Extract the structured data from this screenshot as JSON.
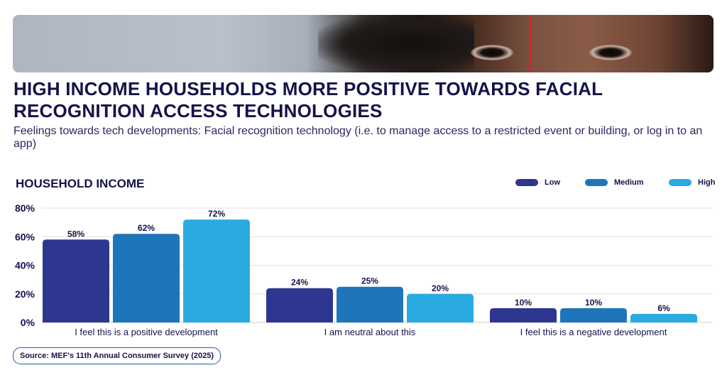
{
  "banner": {
    "image": "close-up of face with red scan line (facial recognition)"
  },
  "title": "HIGH INCOME HOUSEHOLDS MORE POSITIVE TOWARDS FACIAL RECOGNITION ACCESS TECHNOLOGIES",
  "subtitle": "Feelings towards tech developments: Facial recognition technology (i.e. to manage access to a restricted event or building, or log in to an app)",
  "source": "Source: MEF's 11th Annual Consumer Survey (2025)",
  "chart_data": {
    "type": "bar",
    "title": "HOUSEHOLD INCOME",
    "xlabel": "",
    "ylabel": "",
    "ylim": [
      0,
      80
    ],
    "yticks": [
      0,
      20,
      40,
      60,
      80
    ],
    "ytick_labels": [
      "0%",
      "20%",
      "40%",
      "60%",
      "80%"
    ],
    "grid": true,
    "legend_position": "top-right",
    "categories": [
      "I feel this is a positive development",
      "I am neutral about this",
      "I feel this is a negative development"
    ],
    "series": [
      {
        "name": "Low",
        "color": "#2e368f",
        "values": [
          58,
          24,
          10
        ],
        "labels": [
          "58%",
          "24%",
          "10%"
        ]
      },
      {
        "name": "Medium",
        "color": "#1f75ba",
        "values": [
          62,
          25,
          10
        ],
        "labels": [
          "62%",
          "25%",
          "10%"
        ]
      },
      {
        "name": "High",
        "color": "#29abe2",
        "values": [
          72,
          20,
          6
        ],
        "labels": [
          "72%",
          "20%",
          "6%"
        ]
      }
    ]
  }
}
